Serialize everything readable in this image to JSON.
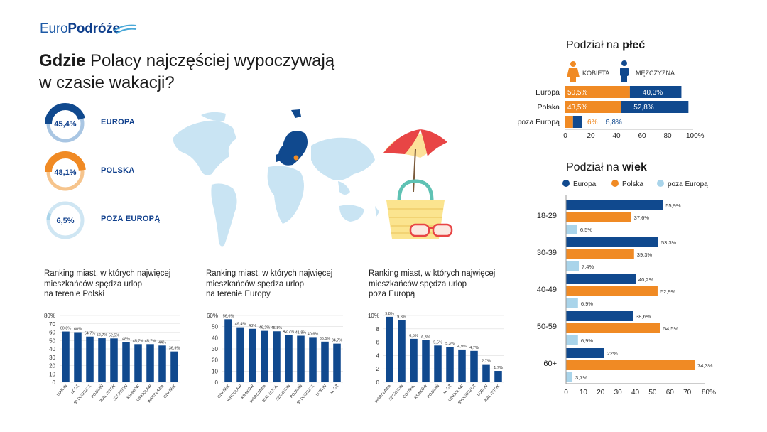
{
  "brand": {
    "name_light": "Euro",
    "name_bold": "Podróże"
  },
  "title": {
    "bold": "Gdzie",
    "rest_line1": " Polacy najczęściej wypoczywają",
    "line2": "w czasie wakacji?"
  },
  "colors": {
    "europa": "#10498e",
    "polska": "#f08a24",
    "poza": "#a9d4ea",
    "map": "#c9e4f3",
    "navy": "#0f3f8c"
  },
  "icons": [
    "female-icon",
    "male-icon",
    "world-map",
    "beach-umbrella-icon",
    "beach-bag-icon",
    "sunglasses-icon"
  ],
  "rings": [
    {
      "value": "45,4%",
      "label": "EUROPA",
      "fraction": 0.454,
      "color": "#10498e",
      "track": "#a9c6e3"
    },
    {
      "value": "48,1%",
      "label": "POLSKA",
      "fraction": 0.481,
      "color": "#f08a24",
      "track": "#f6c48c"
    },
    {
      "value": "6,5%",
      "label": "POZA EUROPĄ",
      "fraction": 0.065,
      "color": "#a9d4ea",
      "track": "#cfe6f3"
    }
  ],
  "gender": {
    "title_normal": "Podział na ",
    "title_bold": "płeć",
    "legend": [
      "KOBIETA",
      "MĘŻCZYZNA"
    ],
    "chart_data": {
      "type": "bar",
      "orientation": "horizontal-stacked",
      "categories": [
        "Europa",
        "Polska",
        "poza Europą"
      ],
      "series": [
        {
          "name": "KOBIETA",
          "values": [
            50.5,
            43.5,
            6
          ],
          "labels": [
            "50,5%",
            "43,5%",
            "6%"
          ]
        },
        {
          "name": "MĘŻCZYZNA",
          "values": [
            40.3,
            52.8,
            6.8
          ],
          "labels": [
            "40,3%",
            "52,8%",
            "6,8%"
          ]
        }
      ],
      "xlim": [
        0,
        100
      ],
      "ticks": [
        "0",
        "20",
        "40",
        "60",
        "80",
        "100%"
      ]
    }
  },
  "age": {
    "title_normal": "Podział na ",
    "title_bold": "wiek",
    "chart_data": {
      "type": "bar",
      "orientation": "horizontal-grouped",
      "categories": [
        "18-29",
        "30-39",
        "40-49",
        "50-59",
        "60+"
      ],
      "series": [
        {
          "name": "Europa",
          "values": [
            55.9,
            53.3,
            40.2,
            38.6,
            22
          ],
          "labels": [
            "55,9%",
            "53,3%",
            "40,2%",
            "38,6%",
            "22%"
          ]
        },
        {
          "name": "Polska",
          "values": [
            37.6,
            39.3,
            52.9,
            54.5,
            74.3
          ],
          "labels": [
            "37,6%",
            "39,3%",
            "52,9%",
            "54,5%",
            "74,3%"
          ]
        },
        {
          "name": "poza Europą",
          "values": [
            6.5,
            7.4,
            6.9,
            6.9,
            3.7
          ],
          "labels": [
            "6,5%",
            "7,4%",
            "6,9%",
            "6,9%",
            "3,7%"
          ]
        }
      ],
      "xlim": [
        0,
        80
      ],
      "ticks": [
        "0",
        "10",
        "20",
        "30",
        "40",
        "50",
        "60",
        "70",
        "80%"
      ]
    }
  },
  "rankings": [
    {
      "title": [
        "Ranking miast, w których najwięcej",
        "mieszkańców spędza urlop",
        "na terenie Polski"
      ],
      "chart_data": {
        "type": "bar",
        "categories": [
          "LUBLIN",
          "ŁÓDŹ",
          "BYDGOSZCZ",
          "POZNAŃ",
          "BIAŁYSTOK",
          "SZCZECIN",
          "KRAKÓW",
          "WROCŁAW",
          "WARSZAWA",
          "GDAŃSK"
        ],
        "values": [
          60.8,
          60,
          54.7,
          52.7,
          52.5,
          48,
          45.7,
          45.7,
          44,
          36.9
        ],
        "labels": [
          "60,8%",
          "60%",
          "54,7%",
          "52,7%",
          "52,5%",
          "48%",
          "45,7%",
          "45,7%",
          "44%",
          "36,9%"
        ],
        "ylim": [
          0,
          80
        ],
        "yticks": [
          "0",
          "10",
          "20",
          "30",
          "40",
          "50",
          "60",
          "70",
          "80%"
        ]
      }
    },
    {
      "title": [
        "Ranking miast, w których najwięcej",
        "mieszkańców spędza urlop",
        "na terenie Europy"
      ],
      "chart_data": {
        "type": "bar",
        "categories": [
          "GDAŃSK",
          "WROCŁAW",
          "KRAKÓW",
          "WARSZAWA",
          "BIAŁYSTOK",
          "SZCZECIN",
          "POZNAŃ",
          "BYDGOSZCZ",
          "LUBLIN",
          "ŁÓDŹ"
        ],
        "values": [
          56.6,
          49.4,
          48,
          46.2,
          45.8,
          42.7,
          41.8,
          40.6,
          36.5,
          34.7
        ],
        "labels": [
          "56,6%",
          "49,4%",
          "48%",
          "46,2%",
          "45,8%",
          "42,7%",
          "41,8%",
          "40,6%",
          "36,5%",
          "34,7%"
        ],
        "ylim": [
          0,
          60
        ],
        "yticks": [
          "0",
          "10",
          "20",
          "30",
          "40",
          "50",
          "60%"
        ]
      }
    },
    {
      "title": [
        "Ranking miast, w których najwięcej",
        "mieszkańców spędza urlop",
        "poza Europą"
      ],
      "chart_data": {
        "type": "bar",
        "categories": [
          "WARSZAWA",
          "SZCZECIN",
          "GDAŃSK",
          "KRAKÓW",
          "POZNAŃ",
          "ŁÓDŹ",
          "WROCŁAW",
          "BYDGOSZCZ",
          "LUBLIN",
          "BIAŁYSTOK"
        ],
        "values": [
          9.8,
          9.3,
          6.5,
          6.3,
          5.5,
          5.3,
          4.9,
          4.7,
          2.7,
          1.7
        ],
        "labels": [
          "9,8%",
          "9,3%",
          "6,5%",
          "6,3%",
          "5,5%",
          "5,3%",
          "4,9%",
          "4,7%",
          "2,7%",
          "1,7%"
        ],
        "ylim": [
          0,
          10
        ],
        "yticks": [
          "0",
          "2",
          "4",
          "6",
          "8",
          "10%"
        ]
      }
    }
  ]
}
